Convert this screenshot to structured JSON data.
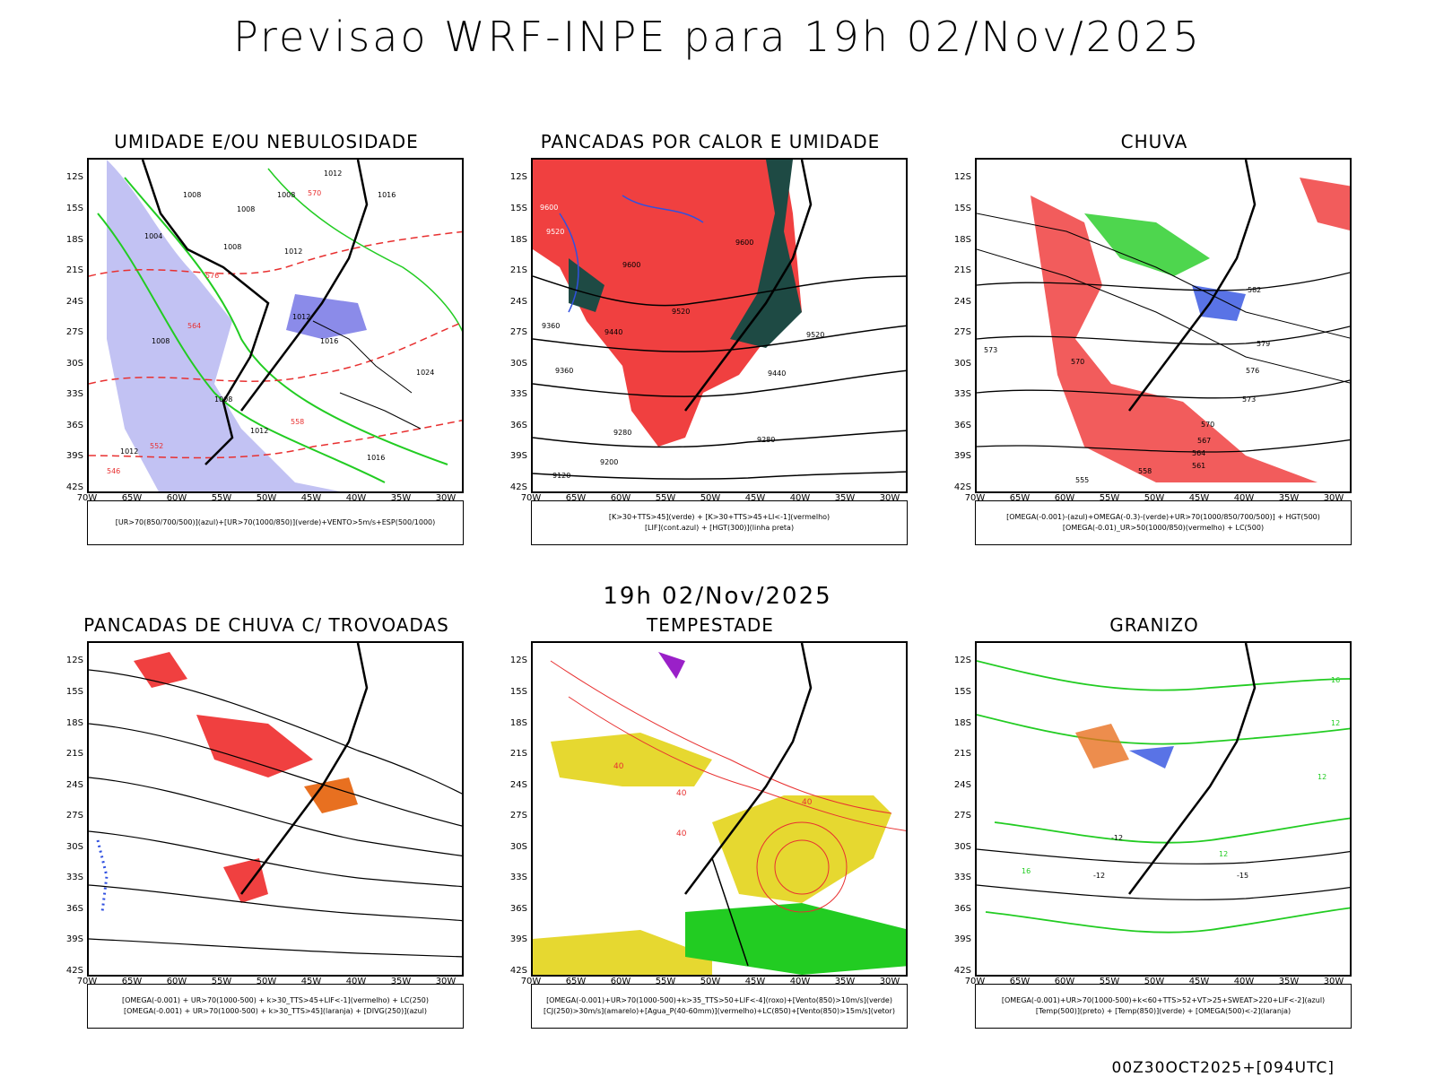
{
  "title": "Previsao WRF-INPE  para 19h 02/Nov/2025",
  "mid_time": "19h 02/Nov/2025",
  "footer": "00Z30OCT2025+[094UTC]",
  "lat_labels": [
    "12S",
    "15S",
    "18S",
    "21S",
    "24S",
    "27S",
    "30S",
    "33S",
    "36S",
    "39S",
    "42S"
  ],
  "lon_labels": [
    "70W",
    "65W",
    "60W",
    "55W",
    "50W",
    "45W",
    "40W",
    "35W",
    "30W"
  ],
  "panels": [
    {
      "title": "UMIDADE E/OU NEBULOSIDADE",
      "legend": [
        "[UR>70(850/700/500)](azul)+[UR>70(1000/850)](verde)+VENTO>5m/s+ESP(500/1000)"
      ],
      "contour_labels": [
        "1012",
        "1008",
        "1008",
        "1008",
        "1016",
        "1004",
        "1008",
        "1012",
        "1008",
        "1012",
        "1016",
        "1024",
        "1008",
        "1012",
        "1012",
        "1016",
        "570",
        "576",
        "564",
        "558",
        "552",
        "546"
      ]
    },
    {
      "title": "PANCADAS POR CALOR E UMIDADE",
      "legend": [
        "[K>30+TTS>45](verde) + [K>30+TTS>45+LI<-1](vermelho)",
        "[LIF](cont.azul) + [HGT(300)](linha preta)"
      ],
      "contour_labels": [
        "9600",
        "9520",
        "9600",
        "9600",
        "9520",
        "9440",
        "9360",
        "9520",
        "9440",
        "9360",
        "9280",
        "9280",
        "9200",
        "9120"
      ]
    },
    {
      "title": "CHUVA",
      "legend": [
        "[OMEGA(-0.001)-(azul)+OMEGA(-0.3)-(verde)+UR>70(1000/850/700/500)] + HGT(500)",
        "[OMEGA(-0.01)_UR>50(1000/850)(vermelho) + LC(500)"
      ],
      "contour_labels": [
        "582",
        "579",
        "576",
        "573",
        "570",
        "567",
        "564",
        "561",
        "558",
        "555",
        "573",
        "570"
      ]
    },
    {
      "title": "PANCADAS DE CHUVA C/ TROVOADAS",
      "legend": [
        "[OMEGA(-0.001) + UR>70(1000-500) + k>30_TTS>45+LIF<-1](vermelho) + LC(250)",
        "[OMEGA(-0.001) + UR>70(1000-500) + k>30_TTS>45](laranja) + [DIVG(250)](azul)"
      ],
      "contour_labels": []
    },
    {
      "title": "TEMPESTADE",
      "legend": [
        "[OMEGA(-0.001)+UR>70(1000-500)+k>35_TTS>50+LIF<-4](roxo)+[Vento(850)>10m/s](verde)",
        "[CJ(250)>30m/s](amarelo)+[Agua_P(40-60mm)](vermelho)+LC(850)+[Vento(850)>15m/s](vetor)"
      ],
      "contour_labels": [
        "40",
        "40",
        "40",
        "40"
      ]
    },
    {
      "title": "GRANIZO",
      "legend": [
        "[OMEGA(-0.001)+UR>70(1000-500)+k<60+TTS>52+VT>25+SWEAT>220+LIF<-2](azul)",
        "[Temp(500)](preto) + [Temp(850)](verde) + [OMEGA(500)<-2](laranja)"
      ],
      "contour_labels": [
        "12",
        "12",
        "-12",
        "-12",
        "-15",
        "12",
        "16",
        "16"
      ]
    }
  ],
  "colors": {
    "frame": "#000000",
    "blue_fill": "#b3b3f0",
    "green_line": "#22cc22",
    "red_fill": "#f04040",
    "dark_teal": "#1e4a44",
    "yellow_fill": "#e6d830",
    "orange": "#e87020",
    "purple": "#9a20c8",
    "red_line": "#e83030"
  }
}
